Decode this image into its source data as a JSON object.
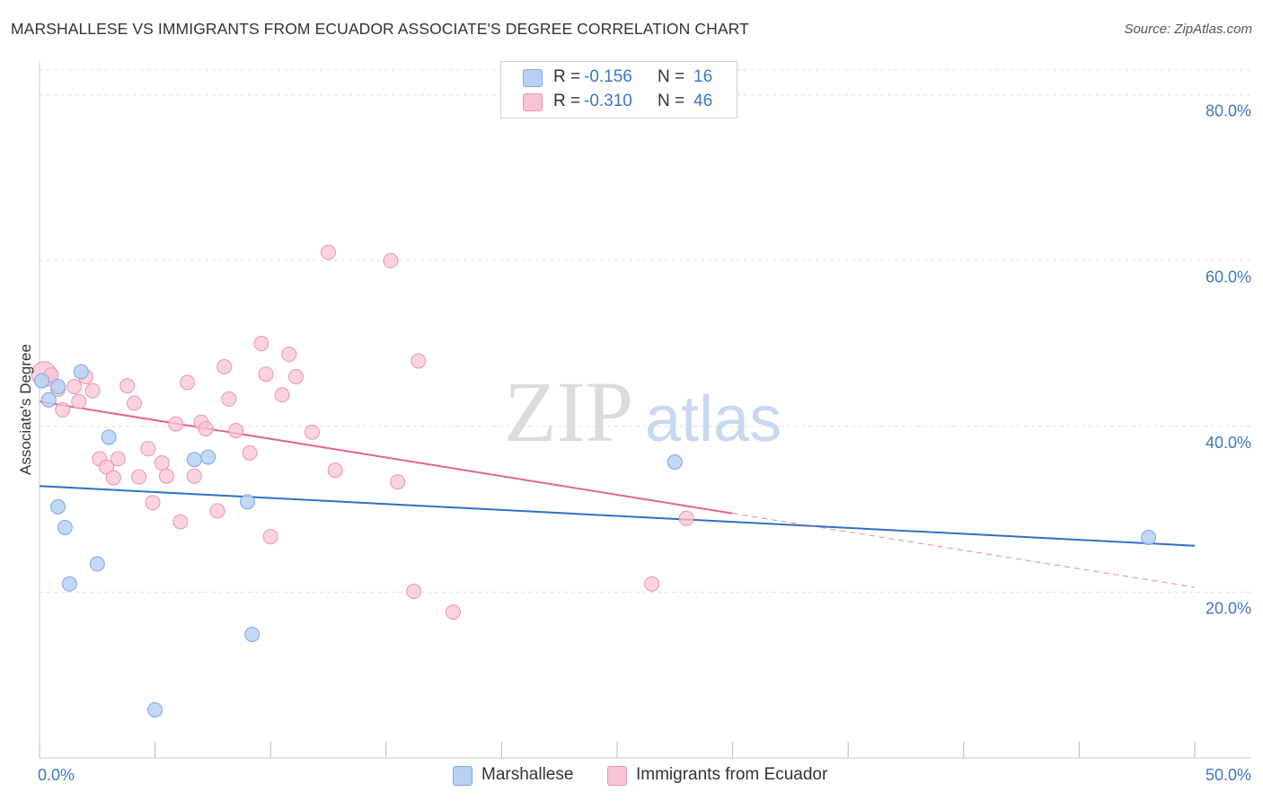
{
  "title": "MARSHALLESE VS IMMIGRANTS FROM ECUADOR ASSOCIATE'S DEGREE CORRELATION CHART",
  "source": "Source: ZipAtlas.com",
  "colors": {
    "blue_fill": "#b7d1f4",
    "blue_stroke": "#7ea8e0",
    "blue_line": "#2f6fc7",
    "pink_fill": "#f8c4d3",
    "pink_stroke": "#ec94b0",
    "pink_line": "#e5638f",
    "axis_text": "#3f76c6",
    "grid": "#dddddd"
  },
  "legend": {
    "r_label": "R =",
    "n_label": "N =",
    "rows": [
      {
        "series": "Marshallese",
        "r": "-0.156",
        "n": "16"
      },
      {
        "series": "Immigrants from Ecuador",
        "r": "-0.310",
        "n": "46"
      }
    ]
  },
  "bottom_legend": [
    "Marshallese",
    "Immigrants from Ecuador"
  ],
  "watermark": {
    "zip": "ZIP",
    "atlas": "atlas"
  },
  "chart_data": {
    "type": "scatter",
    "title": "MARSHALLESE VS IMMIGRANTS FROM ECUADOR ASSOCIATE'S DEGREE CORRELATION CHART",
    "xlabel": "",
    "ylabel": "Associate's Degree",
    "xlim": [
      0,
      50
    ],
    "ylim": [
      0,
      83
    ],
    "x_tick_labels": [
      {
        "value": 0,
        "label": "0.0%"
      },
      {
        "value": 50,
        "label": "50.0%"
      }
    ],
    "x_minor_ticks": [
      5,
      10,
      15,
      20,
      25,
      30,
      35,
      40,
      45
    ],
    "y_ticks": [
      {
        "value": 20,
        "label": "20.0%"
      },
      {
        "value": 40,
        "label": "40.0%"
      },
      {
        "value": 60,
        "label": "60.0%"
      },
      {
        "value": 80,
        "label": "80.0%"
      }
    ],
    "grid": true,
    "series": [
      {
        "name": "Marshallese",
        "color": "#b7d1f4",
        "points": [
          {
            "x": 0.1,
            "y": 45.5
          },
          {
            "x": 0.4,
            "y": 43.2
          },
          {
            "x": 0.8,
            "y": 44.8
          },
          {
            "x": 1.8,
            "y": 46.6
          },
          {
            "x": 3.0,
            "y": 38.7
          },
          {
            "x": 0.8,
            "y": 30.3
          },
          {
            "x": 1.1,
            "y": 27.8
          },
          {
            "x": 1.3,
            "y": 21.0
          },
          {
            "x": 2.5,
            "y": 23.4
          },
          {
            "x": 6.7,
            "y": 36.0
          },
          {
            "x": 7.3,
            "y": 36.3
          },
          {
            "x": 9.0,
            "y": 30.9
          },
          {
            "x": 9.2,
            "y": 14.9
          },
          {
            "x": 5.0,
            "y": 5.8
          },
          {
            "x": 27.5,
            "y": 35.7
          },
          {
            "x": 48.0,
            "y": 26.6
          }
        ],
        "trend": {
          "x0": 0,
          "y0": 32.8,
          "x1": 50,
          "y1": 25.6
        }
      },
      {
        "name": "Immigrants from Ecuador",
        "color": "#f8c4d3",
        "points": [
          {
            "x": 0.2,
            "y": 46.3
          },
          {
            "x": 0.5,
            "y": 46.2
          },
          {
            "x": 0.8,
            "y": 44.5
          },
          {
            "x": 1.0,
            "y": 42.0
          },
          {
            "x": 1.5,
            "y": 44.8
          },
          {
            "x": 1.7,
            "y": 43.0
          },
          {
            "x": 2.0,
            "y": 46.0
          },
          {
            "x": 2.3,
            "y": 44.3
          },
          {
            "x": 2.6,
            "y": 36.1
          },
          {
            "x": 2.9,
            "y": 35.1
          },
          {
            "x": 3.2,
            "y": 33.8
          },
          {
            "x": 3.4,
            "y": 36.1
          },
          {
            "x": 3.8,
            "y": 44.9
          },
          {
            "x": 4.1,
            "y": 42.8
          },
          {
            "x": 4.3,
            "y": 33.9
          },
          {
            "x": 4.7,
            "y": 37.3
          },
          {
            "x": 4.9,
            "y": 30.8
          },
          {
            "x": 5.3,
            "y": 35.6
          },
          {
            "x": 5.5,
            "y": 34.0
          },
          {
            "x": 5.9,
            "y": 40.3
          },
          {
            "x": 6.1,
            "y": 28.5
          },
          {
            "x": 6.4,
            "y": 45.3
          },
          {
            "x": 6.7,
            "y": 34.0
          },
          {
            "x": 7.0,
            "y": 40.5
          },
          {
            "x": 7.2,
            "y": 39.7
          },
          {
            "x": 7.7,
            "y": 29.8
          },
          {
            "x": 8.0,
            "y": 47.2
          },
          {
            "x": 8.2,
            "y": 43.3
          },
          {
            "x": 8.5,
            "y": 39.5
          },
          {
            "x": 9.1,
            "y": 36.8
          },
          {
            "x": 9.6,
            "y": 50.0
          },
          {
            "x": 9.8,
            "y": 46.3
          },
          {
            "x": 10.0,
            "y": 26.7
          },
          {
            "x": 10.5,
            "y": 43.8
          },
          {
            "x": 10.8,
            "y": 48.7
          },
          {
            "x": 11.1,
            "y": 46.0
          },
          {
            "x": 11.8,
            "y": 39.3
          },
          {
            "x": 12.5,
            "y": 61.0
          },
          {
            "x": 12.8,
            "y": 34.7
          },
          {
            "x": 15.2,
            "y": 60.0
          },
          {
            "x": 15.5,
            "y": 33.3
          },
          {
            "x": 16.2,
            "y": 20.1
          },
          {
            "x": 16.4,
            "y": 47.9
          },
          {
            "x": 17.9,
            "y": 17.6
          },
          {
            "x": 26.5,
            "y": 21.0
          },
          {
            "x": 28.0,
            "y": 28.9
          }
        ],
        "trend": {
          "x0": 0,
          "y0": 43.0,
          "x1": 30,
          "y1": 29.5
        },
        "trend_dashed": {
          "x0": 30,
          "y0": 29.5,
          "x1": 50,
          "y1": 20.6
        }
      }
    ]
  }
}
